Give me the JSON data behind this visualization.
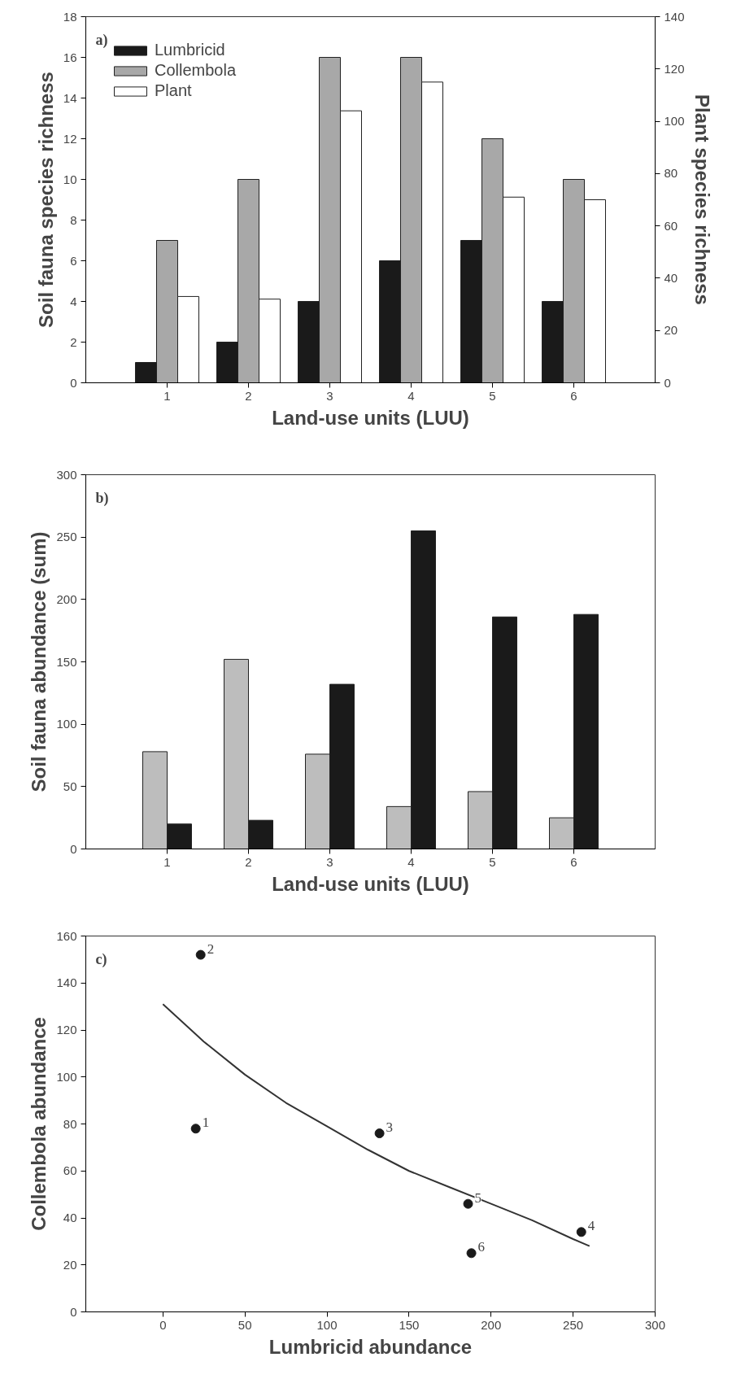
{
  "chart_data": [
    {
      "type": "bar",
      "categories": [
        "1",
        "2",
        "3",
        "4",
        "5",
        "6"
      ],
      "xlabel": "Land-use units (LUU)",
      "ylabel": "Soil fauna species richness",
      "y2label": "Plant species richness",
      "ylim": [
        0,
        18
      ],
      "yticks": [
        0,
        2,
        4,
        6,
        8,
        10,
        12,
        14,
        16,
        18
      ],
      "y2lim": [
        0,
        140
      ],
      "y2ticks": [
        0,
        20,
        40,
        60,
        80,
        100,
        120,
        140
      ],
      "grid": false,
      "legend": "top left",
      "annotations": [
        "a)"
      ],
      "series": [
        {
          "name": "Lumbricid",
          "color": "#1a1a1a",
          "values": [
            1,
            2,
            4,
            6,
            7,
            4
          ]
        },
        {
          "name": "Collembola",
          "color": "#a8a8a8",
          "values": [
            7,
            10,
            16,
            16,
            12,
            10
          ]
        },
        {
          "name": "Plant",
          "color": "#ffffff",
          "values": [
            33,
            32,
            104,
            115,
            71,
            70
          ],
          "axis": "y2"
        }
      ]
    },
    {
      "type": "bar",
      "categories": [
        "1",
        "2",
        "3",
        "4",
        "5",
        "6"
      ],
      "xlabel": "Land-use units (LUU)",
      "ylabel": "Soil fauna abundance (sum)",
      "ylim": [
        0,
        300
      ],
      "yticks": [
        0,
        50,
        100,
        150,
        200,
        250,
        300
      ],
      "grid": false,
      "annotations": [
        "b)"
      ],
      "series": [
        {
          "color": "#bdbdbd",
          "values": [
            78,
            152,
            76,
            34,
            46,
            25
          ]
        },
        {
          "color": "#1a1a1a",
          "values": [
            20,
            23,
            132,
            255,
            186,
            188
          ]
        }
      ]
    },
    {
      "type": "scatter",
      "xlabel": "Lumbricid abundance",
      "ylabel": "Collembola abundance",
      "xlim": [
        -47,
        300
      ],
      "xticks": [
        0,
        50,
        100,
        150,
        200,
        250,
        300
      ],
      "ylim": [
        0,
        160
      ],
      "yticks": [
        0,
        20,
        40,
        60,
        80,
        100,
        120,
        140,
        160
      ],
      "grid": false,
      "annotations": [
        "c)",
        {
          "text": "1",
          "x": 20,
          "y": 78
        },
        {
          "text": "2",
          "x": 23,
          "y": 152
        },
        {
          "text": "3",
          "x": 132,
          "y": 76
        },
        {
          "text": "4",
          "x": 255,
          "y": 34
        },
        {
          "text": "5",
          "x": 186,
          "y": 46
        },
        {
          "text": "6",
          "x": 188,
          "y": 25
        }
      ],
      "series": [
        {
          "color": "#1a1a1a",
          "marker": "circle",
          "x": [
            20,
            23,
            132,
            255,
            186,
            188
          ],
          "values": [
            78,
            152,
            76,
            34,
            46,
            25
          ]
        },
        {
          "type": "line",
          "color": "#333333",
          "x": [
            0,
            25,
            50,
            75,
            100,
            125,
            150,
            175,
            200,
            225,
            250,
            260
          ],
          "values": [
            131,
            115,
            101,
            89,
            79,
            69,
            60,
            53,
            46,
            39,
            31,
            28
          ]
        }
      ]
    }
  ]
}
